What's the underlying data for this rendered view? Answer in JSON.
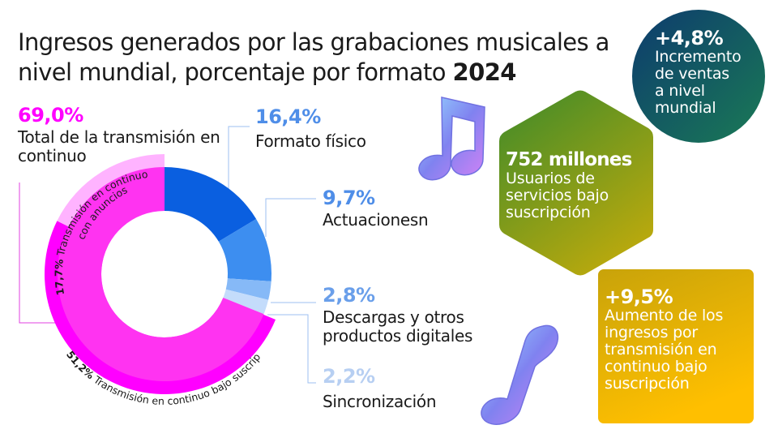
{
  "title": {
    "text": "Ingresos generados por las grabaciones musicales a nivel mundial, porcentaje por formato",
    "year": "2024"
  },
  "colors": {
    "streaming_outer": "#ff00ff",
    "streaming_outer_light": "#ffb3ff",
    "physical": "#0a5fe0",
    "performance": "#3d8ef0",
    "downloads": "#86b9f7",
    "sync": "#c4dcfb",
    "streaming_inner": "#ff33f1",
    "leader_pink": "#e040e0",
    "leader_blue": "#9dbff2"
  },
  "callouts": {
    "streaming": {
      "pct": "69,0%",
      "label": "Total de la transmisión en continuo"
    },
    "physical": {
      "pct": "16,4%",
      "label": "Formato físico"
    },
    "performance": {
      "pct": "9,7%",
      "label": "Actuacionesn"
    },
    "downloads": {
      "pct": "2,8%",
      "label_line1": "Descargas y otros",
      "label_line2": "productos digitales"
    },
    "sync": {
      "pct": "2,2%",
      "label": "Sincronización"
    }
  },
  "chart_data": {
    "type": "pie",
    "inner_ring": [
      {
        "name": "Transmisión en continuo",
        "value": 69.0
      },
      {
        "name": "Formato físico",
        "value": 16.4
      },
      {
        "name": "Actuacionesn",
        "value": 9.7
      },
      {
        "name": "Descargas y otros productos digitales",
        "value": 2.8
      },
      {
        "name": "Sincronización",
        "value": 2.2
      }
    ],
    "outer_ring": [
      {
        "name": "Transmisión en continuo con anuncios",
        "value": 17.7,
        "pct_label": "17,7%",
        "name_line1": "Transmisión en continuo",
        "name_line2": "con anuncios"
      },
      {
        "name": "Transmisión en continuo bajo suscripción",
        "value": 51.2,
        "pct_label": "51,2%"
      }
    ]
  },
  "stats": {
    "increase": {
      "value": "+4,8%",
      "line1": "Incremento",
      "line2": "de ventas",
      "line3": "a nivel",
      "line4": "mundial"
    },
    "users": {
      "value": "752 millones",
      "line1": "Usuarios de",
      "line2": "servicios bajo",
      "line3": "suscripción"
    },
    "revenue": {
      "value": "+9,5%",
      "line1": "Aumento de los",
      "line2": "ingresos por",
      "line3": "transmisión en",
      "line4": "continuo bajo",
      "line5": "suscripción"
    }
  },
  "icons": [
    "music-notes-icon",
    "music-note-icon"
  ]
}
